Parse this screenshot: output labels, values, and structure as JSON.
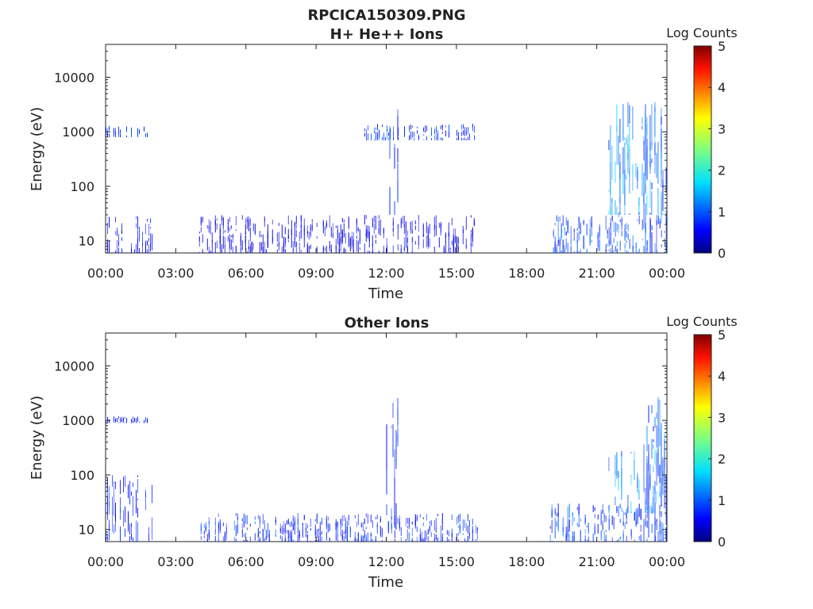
{
  "chart_data": [
    {
      "type": "heatmap",
      "title_line1": "RPCICA150309.PNG",
      "title": "H+ He++ Ions",
      "xlabel": "Time",
      "ylabel": "Energy (eV)",
      "x_ticks": [
        "00:00",
        "03:00",
        "06:00",
        "09:00",
        "12:00",
        "15:00",
        "18:00",
        "21:00",
        "00:00"
      ],
      "y_ticks": [
        "10",
        "100",
        "1000",
        "10000"
      ],
      "y_scale": "log",
      "ylim": [
        6,
        40000
      ],
      "xlim_hours": [
        0,
        24
      ],
      "colorbar": {
        "label": "Log Counts",
        "ticks": [
          "0",
          "1",
          "2",
          "3",
          "4",
          "5"
        ],
        "range": [
          0,
          5
        ],
        "colormap": "jet"
      },
      "data_gaps_hours": [
        [
          2.0,
          4.0
        ],
        [
          15.9,
          19.0
        ]
      ],
      "activity": [
        {
          "t0": 0.0,
          "t1": 2.0,
          "e_low": 6,
          "e_high": 30,
          "level": 0.6
        },
        {
          "t0": 0.0,
          "t1": 1.8,
          "e_low": 800,
          "e_high": 1300,
          "level": 0.9
        },
        {
          "t0": 4.0,
          "t1": 15.9,
          "e_low": 6,
          "e_high": 30,
          "level": 0.5
        },
        {
          "t0": 11.0,
          "t1": 15.9,
          "e_low": 700,
          "e_high": 1400,
          "level": 0.9
        },
        {
          "t0": 12.0,
          "t1": 12.5,
          "e_low": 30,
          "e_high": 3000,
          "level": 0.8
        },
        {
          "t0": 19.0,
          "t1": 24.0,
          "e_low": 6,
          "e_high": 30,
          "level": 1.0
        },
        {
          "t0": 21.5,
          "t1": 24.0,
          "e_low": 30,
          "e_high": 4000,
          "level": 1.4
        },
        {
          "t0": 23.0,
          "t1": 24.0,
          "e_low": 6,
          "e_high": 4000,
          "level": 1.0
        }
      ]
    },
    {
      "type": "heatmap",
      "title": "Other Ions",
      "xlabel": "Time",
      "ylabel": "Energy (eV)",
      "x_ticks": [
        "00:00",
        "03:00",
        "06:00",
        "09:00",
        "12:00",
        "15:00",
        "18:00",
        "21:00",
        "00:00"
      ],
      "y_ticks": [
        "10",
        "100",
        "1000",
        "10000"
      ],
      "y_scale": "log",
      "ylim": [
        6,
        40000
      ],
      "xlim_hours": [
        0,
        24
      ],
      "colorbar": {
        "label": "Log Counts",
        "ticks": [
          "0",
          "1",
          "2",
          "3",
          "4",
          "5"
        ],
        "range": [
          0,
          5
        ],
        "colormap": "jet"
      },
      "data_gaps_hours": [
        [
          2.0,
          4.0
        ],
        [
          15.9,
          19.0
        ]
      ],
      "activity": [
        {
          "t0": 0.0,
          "t1": 2.0,
          "e_low": 6,
          "e_high": 100,
          "level": 0.7
        },
        {
          "t0": 0.0,
          "t1": 1.8,
          "e_low": 900,
          "e_high": 1200,
          "level": 0.6
        },
        {
          "t0": 4.0,
          "t1": 15.9,
          "e_low": 6,
          "e_high": 20,
          "level": 0.8
        },
        {
          "t0": 12.0,
          "t1": 12.5,
          "e_low": 10,
          "e_high": 3000,
          "level": 0.8
        },
        {
          "t0": 19.0,
          "t1": 24.0,
          "e_low": 6,
          "e_high": 30,
          "level": 0.9
        },
        {
          "t0": 21.5,
          "t1": 24.0,
          "e_low": 20,
          "e_high": 300,
          "level": 1.4
        },
        {
          "t0": 23.0,
          "t1": 24.0,
          "e_low": 6,
          "e_high": 3000,
          "level": 1.0
        }
      ]
    }
  ]
}
